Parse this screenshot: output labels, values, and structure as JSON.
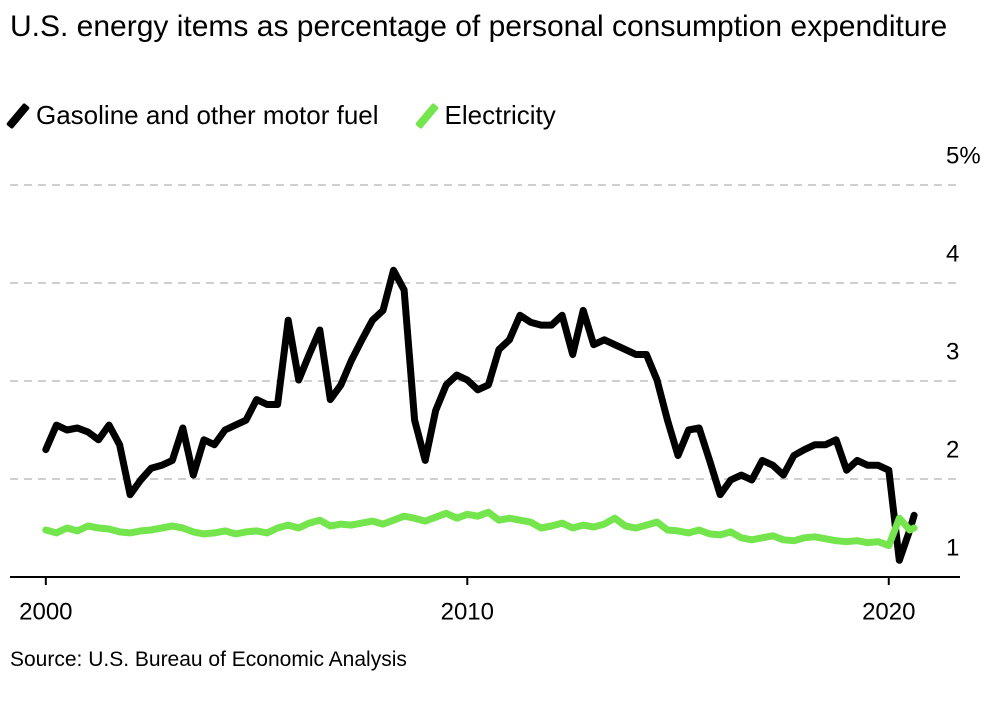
{
  "chart_data": {
    "type": "line",
    "title": "U.S. energy items as percentage of personal consumption expenditure",
    "source": "Source: U.S. Bureau of Economic Analysis",
    "x": [
      2000,
      2000.25,
      2000.5,
      2000.75,
      2001,
      2001.25,
      2001.5,
      2001.75,
      2002,
      2002.25,
      2002.5,
      2002.75,
      2003,
      2003.25,
      2003.5,
      2003.75,
      2004,
      2004.25,
      2004.5,
      2004.75,
      2005,
      2005.25,
      2005.5,
      2005.75,
      2006,
      2006.25,
      2006.5,
      2006.75,
      2007,
      2007.25,
      2007.5,
      2007.75,
      2008,
      2008.25,
      2008.5,
      2008.75,
      2009,
      2009.25,
      2009.5,
      2009.75,
      2010,
      2010.25,
      2010.5,
      2010.75,
      2011,
      2011.25,
      2011.5,
      2011.75,
      2012,
      2012.25,
      2012.5,
      2012.75,
      2013,
      2013.25,
      2013.5,
      2013.75,
      2014,
      2014.25,
      2014.5,
      2014.75,
      2015,
      2015.25,
      2015.5,
      2015.75,
      2016,
      2016.25,
      2016.5,
      2016.75,
      2017,
      2017.25,
      2017.5,
      2017.75,
      2018,
      2018.25,
      2018.5,
      2018.75,
      2019,
      2019.25,
      2019.5,
      2019.75,
      2020,
      2020.25,
      2020.5,
      2020.6
    ],
    "series": [
      {
        "name": "Gasoline and other motor fuel",
        "color": "#000000",
        "values": [
          2.3,
          2.55,
          2.5,
          2.52,
          2.48,
          2.4,
          2.55,
          2.35,
          1.84,
          1.99,
          2.11,
          2.14,
          2.19,
          2.52,
          2.04,
          2.4,
          2.35,
          2.5,
          2.55,
          2.6,
          2.81,
          2.76,
          2.76,
          3.62,
          3.01,
          3.27,
          3.52,
          2.81,
          2.96,
          3.21,
          3.42,
          3.62,
          3.72,
          4.13,
          3.93,
          2.6,
          2.19,
          2.7,
          2.96,
          3.06,
          3.01,
          2.91,
          2.96,
          3.32,
          3.42,
          3.67,
          3.6,
          3.57,
          3.57,
          3.67,
          3.27,
          3.72,
          3.37,
          3.42,
          3.37,
          3.32,
          3.27,
          3.27,
          3.01,
          2.6,
          2.24,
          2.5,
          2.52,
          2.19,
          1.84,
          1.99,
          2.04,
          1.99,
          2.19,
          2.14,
          2.04,
          2.24,
          2.3,
          2.35,
          2.35,
          2.4,
          2.09,
          2.19,
          2.14,
          2.14,
          2.09,
          1.17,
          1.48,
          1.63
        ]
      },
      {
        "name": "Electricity",
        "color": "#74e54d",
        "values": [
          1.48,
          1.45,
          1.5,
          1.47,
          1.52,
          1.5,
          1.49,
          1.46,
          1.45,
          1.47,
          1.48,
          1.5,
          1.52,
          1.5,
          1.46,
          1.44,
          1.45,
          1.47,
          1.44,
          1.46,
          1.47,
          1.45,
          1.5,
          1.53,
          1.5,
          1.55,
          1.58,
          1.52,
          1.54,
          1.53,
          1.55,
          1.57,
          1.54,
          1.58,
          1.62,
          1.6,
          1.57,
          1.61,
          1.65,
          1.6,
          1.64,
          1.62,
          1.66,
          1.58,
          1.6,
          1.58,
          1.56,
          1.5,
          1.52,
          1.55,
          1.5,
          1.53,
          1.51,
          1.54,
          1.6,
          1.52,
          1.5,
          1.53,
          1.56,
          1.48,
          1.47,
          1.45,
          1.48,
          1.44,
          1.43,
          1.46,
          1.4,
          1.38,
          1.4,
          1.42,
          1.38,
          1.37,
          1.4,
          1.41,
          1.39,
          1.37,
          1.36,
          1.37,
          1.35,
          1.36,
          1.32,
          1.6,
          1.48,
          1.5
        ]
      }
    ],
    "xlim": [
      1999.15,
      2021.69
    ],
    "xticks": [
      2000,
      2010,
      2020
    ],
    "ylim": [
      1,
      5
    ],
    "yticks": [
      1,
      2,
      3,
      4,
      {
        "value": 5,
        "label": "5%"
      }
    ],
    "grid": true
  }
}
